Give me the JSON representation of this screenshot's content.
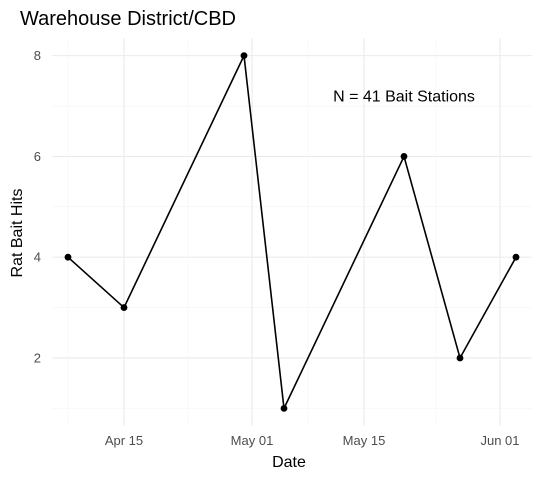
{
  "chart_data": {
    "type": "line",
    "title": "Warehouse District/CBD",
    "xlabel": "Date",
    "ylabel": "Rat Bait Hits",
    "x": [
      "2021-04-08",
      "2021-04-15",
      "2021-04-30",
      "2021-05-05",
      "2021-05-20",
      "2021-05-27",
      "2021-06-03"
    ],
    "series": [
      {
        "values": [
          4,
          3,
          8,
          1,
          6,
          2,
          4
        ]
      }
    ],
    "x_ticks": [
      {
        "date": "2021-04-15",
        "label": "Apr 15"
      },
      {
        "date": "2021-05-01",
        "label": "May 01"
      },
      {
        "date": "2021-05-15",
        "label": "May 15"
      },
      {
        "date": "2021-06-01",
        "label": "Jun 01"
      }
    ],
    "x_minor_ticks": [
      "2021-04-08",
      "2021-04-23",
      "2021-05-08",
      "2021-05-24"
    ],
    "y_ticks": [
      2,
      4,
      6,
      8
    ],
    "y_minor_ticks": [
      1,
      3,
      5,
      7
    ],
    "xlim": [
      "2021-04-06",
      "2021-06-05"
    ],
    "ylim": [
      0.65,
      8.35
    ],
    "grid": true,
    "annotation": {
      "text": "N = 41 Bait Stations",
      "x": "2021-05-20",
      "y": 7.2
    },
    "colors": {
      "line": "#000000",
      "point": "#000000",
      "grid": "#ebebeb"
    }
  }
}
